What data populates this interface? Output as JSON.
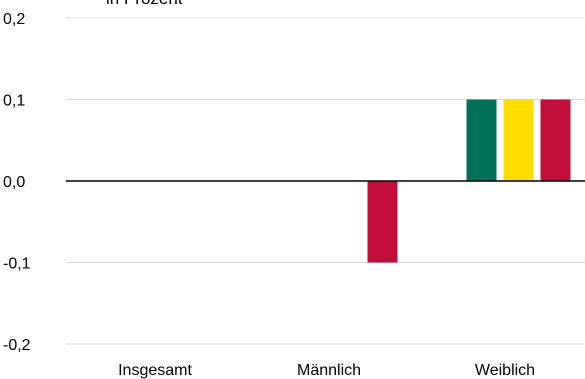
{
  "chart_data": {
    "type": "bar",
    "title": "in Prozent",
    "categories": [
      "Insgesamt",
      "Männlich",
      "Weiblich"
    ],
    "series": [
      {
        "color": "#00705a",
        "values": [
          0.0,
          0.0,
          0.1
        ]
      },
      {
        "color": "#ffdd00",
        "values": [
          0.0,
          0.0,
          0.1
        ]
      },
      {
        "color": "#c20e3a",
        "values": [
          0.0,
          -0.1,
          0.1
        ]
      }
    ],
    "y_ticks": [
      "0,2",
      "0,1",
      "0,0",
      "-0,1",
      "-0,2"
    ],
    "y_tick_values": [
      0.2,
      0.1,
      0.0,
      -0.1,
      -0.2
    ],
    "ylim": [
      -0.2,
      0.2
    ],
    "grid": true,
    "xlabel": "",
    "ylabel": ""
  }
}
